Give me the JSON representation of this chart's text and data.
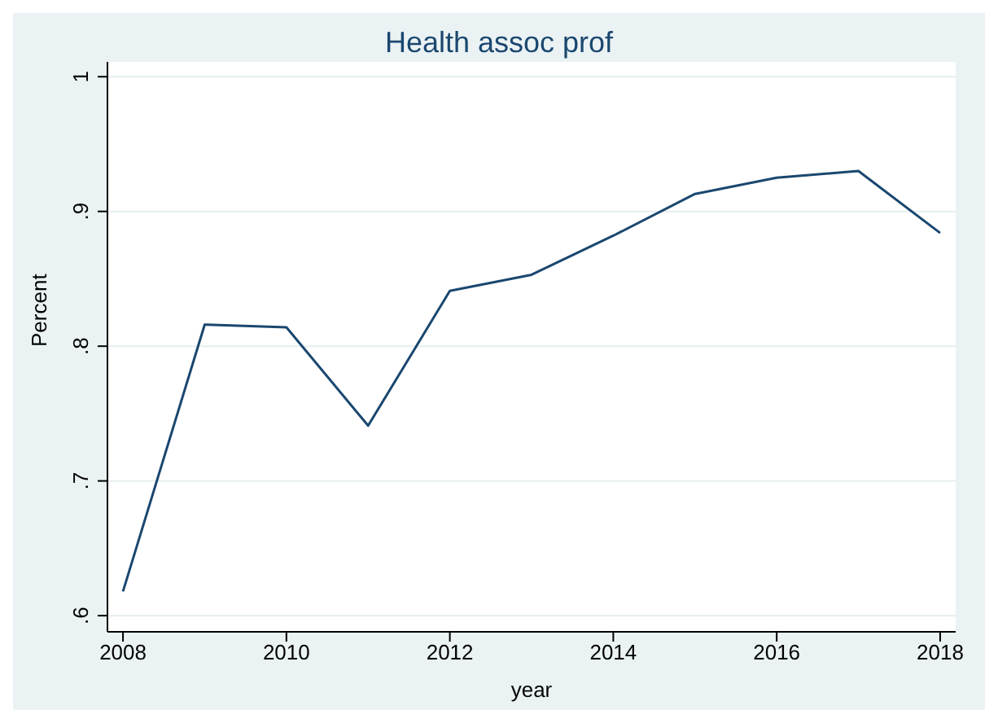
{
  "chart_data": {
    "type": "line",
    "title": "Health assoc prof",
    "xlabel": "year",
    "ylabel": "Percent",
    "x": [
      2008,
      2009,
      2010,
      2011,
      2012,
      2013,
      2014,
      2015,
      2016,
      2017,
      2018
    ],
    "series": [
      {
        "color": "#1a476f",
        "values": [
          0.618,
          0.816,
          0.814,
          0.741,
          0.841,
          0.853,
          0.882,
          0.913,
          0.925,
          0.93,
          0.884
        ]
      }
    ],
    "xlim": [
      2007.81,
      2018.19
    ],
    "xticks": [
      2008,
      2010,
      2012,
      2014,
      2016,
      2018
    ],
    "ylim": [
      0.588,
      1.011
    ],
    "yticks": [
      {
        "value": 0.6,
        "label": ".6"
      },
      {
        "value": 0.7,
        "label": ".7"
      },
      {
        "value": 0.8,
        "label": ".8"
      },
      {
        "value": 0.9,
        "label": ".9"
      },
      {
        "value": 1,
        "label": "1"
      }
    ],
    "grid": "y",
    "legend": false,
    "marker": "none",
    "line_style": "solid"
  }
}
